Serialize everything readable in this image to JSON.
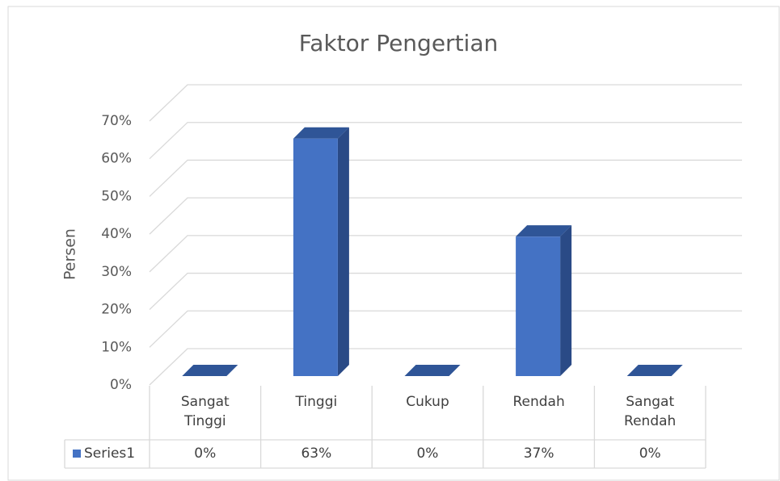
{
  "chart_data": {
    "type": "bar3d",
    "title": "Faktor Pengertian",
    "y_axis_label": "Persen",
    "categories": [
      "Sangat Tinggi",
      "Tinggi",
      "Cukup",
      "Rendah",
      "Sangat Rendah"
    ],
    "series": [
      {
        "name": "Series1",
        "color": "#4472c4",
        "values": [
          0,
          63,
          0,
          37,
          0
        ],
        "value_labels": [
          "0%",
          "63%",
          "0%",
          "37%",
          "0%"
        ]
      }
    ],
    "ylim": [
      0,
      70
    ],
    "yticks": [
      {
        "value": 0,
        "label": "0%"
      },
      {
        "value": 10,
        "label": "10%"
      },
      {
        "value": 20,
        "label": "20%"
      },
      {
        "value": 30,
        "label": "30%"
      },
      {
        "value": 40,
        "label": "40%"
      },
      {
        "value": 50,
        "label": "50%"
      },
      {
        "value": 60,
        "label": "60%"
      },
      {
        "value": 70,
        "label": "70%"
      }
    ],
    "grid": true,
    "data_table": true
  }
}
